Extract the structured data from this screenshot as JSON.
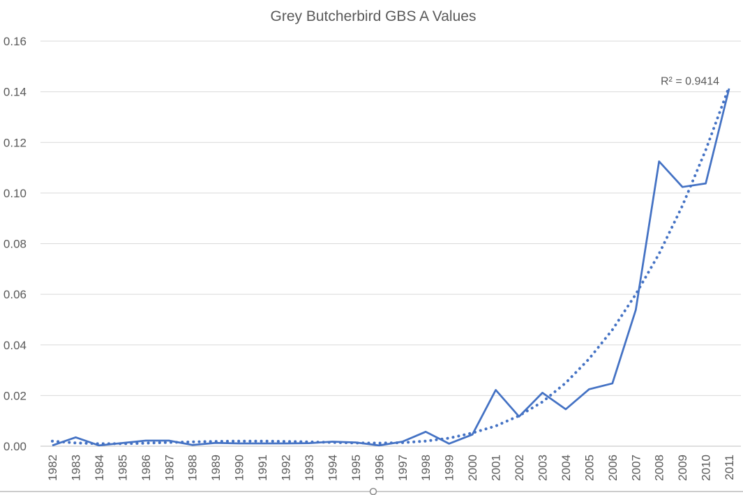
{
  "chart_data": {
    "type": "line",
    "title": "Grey Butcherbird GBS A Values",
    "xlabel": "",
    "ylabel": "",
    "categories": [
      "1982",
      "1983",
      "1984",
      "1985",
      "1986",
      "1987",
      "1988",
      "1989",
      "1990",
      "1991",
      "1992",
      "1993",
      "1994",
      "1995",
      "1996",
      "1997",
      "1998",
      "1999",
      "2000",
      "2001",
      "2002",
      "2003",
      "2004",
      "2005",
      "2006",
      "2007",
      "2008",
      "2009",
      "2010",
      "2011"
    ],
    "y_ticks": [
      "0.00",
      "0.02",
      "0.04",
      "0.06",
      "0.08",
      "0.10",
      "0.12",
      "0.14",
      "0.16"
    ],
    "ylim": [
      0,
      0.16
    ],
    "grid": true,
    "legend": "none",
    "series": [
      {
        "values": [
          0.0003,
          0.0035,
          0.0003,
          null,
          0.0022,
          0.0022,
          0.0005,
          0.0013,
          0.0011,
          0.0011,
          0.0011,
          0.0012,
          0.0018,
          0.0015,
          0.0003,
          0.0018,
          0.0057,
          0.001,
          0.0046,
          0.0222,
          0.0117,
          0.0211,
          0.0146,
          0.0225,
          0.0248,
          0.0538,
          0.1125,
          0.1024,
          0.1038,
          0.1413
        ],
        "color": "#4472C4",
        "style": "solid"
      },
      {
        "values": [
          0.002,
          0.0013,
          0.001,
          0.001,
          0.0012,
          0.0015,
          0.0017,
          0.0019,
          0.002,
          0.002,
          0.0019,
          0.0017,
          0.0015,
          0.0013,
          0.0012,
          0.0014,
          0.002,
          0.0032,
          0.0052,
          0.008,
          0.012,
          0.0175,
          0.025,
          0.0345,
          0.046,
          0.06,
          0.076,
          0.095,
          0.117,
          0.142
        ],
        "color": "#4472C4",
        "style": "dotted",
        "trendline": true
      }
    ],
    "annotations": [
      {
        "text": "R² = 0.9414",
        "anchor": "trendline-end"
      }
    ]
  }
}
